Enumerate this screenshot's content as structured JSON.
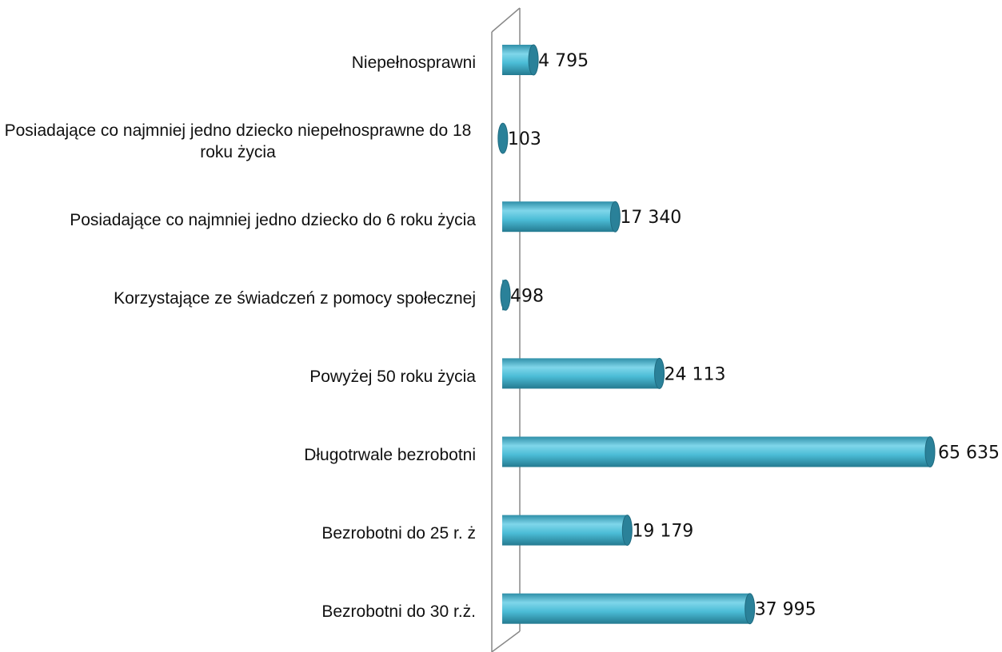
{
  "chart_data": {
    "type": "bar",
    "orientation": "horizontal",
    "categories": [
      "Niepełnosprawni",
      "Posiadające co najmniej jedno dziecko niepełnosprawne do 18 roku życia",
      "Posiadające co najmniej jedno dziecko do 6 roku życia",
      "Korzystające ze świadczeń z pomocy społecznej",
      "Powyżej 50 roku życia",
      "Długotrwale bezrobotni",
      "Bezrobotni do 25 r. ż",
      "Bezrobotni do 30 r.ż."
    ],
    "values": [
      4795,
      103,
      17340,
      498,
      24113,
      65635,
      19179,
      37995
    ],
    "value_labels": [
      "4 795",
      "103",
      "17 340",
      "498",
      "24 113",
      "65 635",
      "19 179",
      "37 995"
    ],
    "color": "#4bbcd6"
  }
}
